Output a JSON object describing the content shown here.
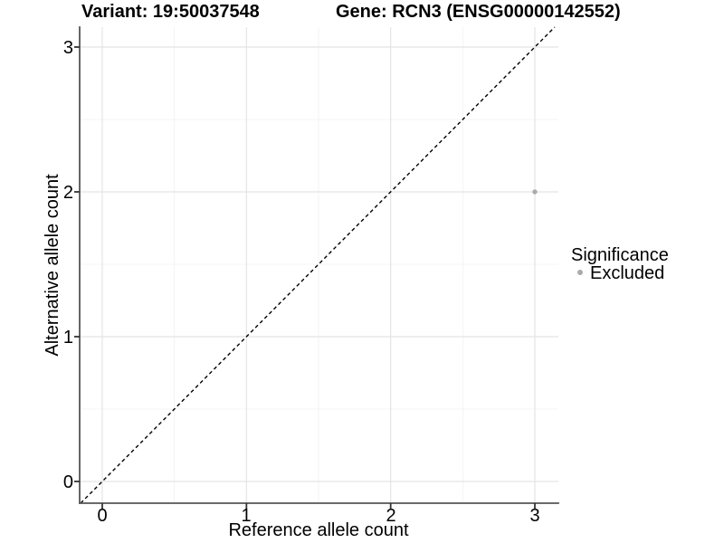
{
  "chart_data": {
    "type": "scatter",
    "title_left": "Variant: 19:50037548",
    "title_right": "Gene: RCN3 (ENSG00000142552)",
    "xlabel": "Reference allele count",
    "ylabel": "Alternative allele count",
    "x_ticks": [
      0,
      1,
      2,
      3
    ],
    "y_ticks": [
      0,
      1,
      2,
      3
    ],
    "x_minor": [
      0.5,
      1.5,
      2.5
    ],
    "y_minor": [
      0.5,
      1.5,
      2.5
    ],
    "xlim": [
      -0.157,
      3.163
    ],
    "ylim": [
      -0.15,
      3.1375
    ],
    "grid": "major+minor",
    "identity_line": {
      "equation": "y = x",
      "style": "dashed",
      "color": "#000000"
    },
    "points": [
      {
        "x": 3,
        "y": 2,
        "significance": "Excluded",
        "color": "#ababab",
        "radius": 2.7
      }
    ],
    "legend": {
      "title": "Significance",
      "position": "right",
      "items": [
        {
          "label": "Excluded",
          "color": "#ababab"
        }
      ]
    },
    "colors": {
      "background": "#ffffff",
      "grid_major": "#e4e4e4",
      "grid_minor": "#f0f0f0",
      "axis": "#555555",
      "text": "#000000"
    }
  }
}
